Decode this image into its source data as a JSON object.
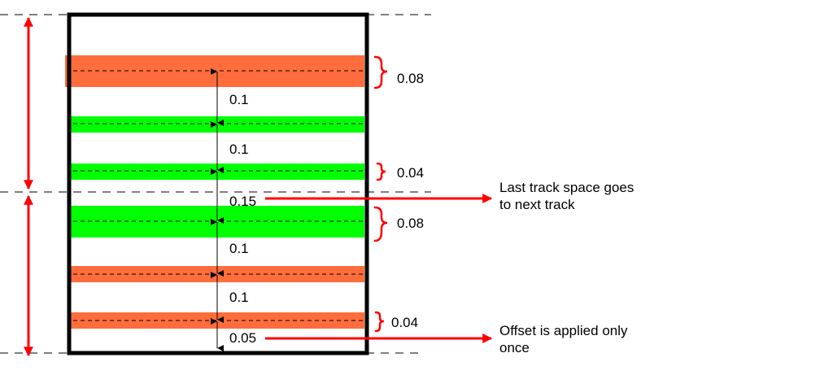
{
  "colors": {
    "orange_track": "#ff6d3c",
    "green_track": "#00ff00",
    "annotation_red": "#ff0000",
    "frame": "#000000"
  },
  "tracks": [
    {
      "color": "orange",
      "width": "0.08"
    },
    {
      "color": "green",
      "width": null
    },
    {
      "color": "green",
      "width": "0.04"
    },
    {
      "color": "green",
      "width": "0.08"
    },
    {
      "color": "orange",
      "width": null
    },
    {
      "color": "orange",
      "width": "0.04"
    }
  ],
  "spacings": [
    "0.1",
    "0.1",
    "0.15",
    "0.1",
    "0.1",
    "0.05"
  ],
  "notes": {
    "last_track": {
      "line1": "Last track space goes",
      "line2": "to next track"
    },
    "offset": {
      "line1": "Offset is applied only",
      "line2": "once"
    }
  }
}
